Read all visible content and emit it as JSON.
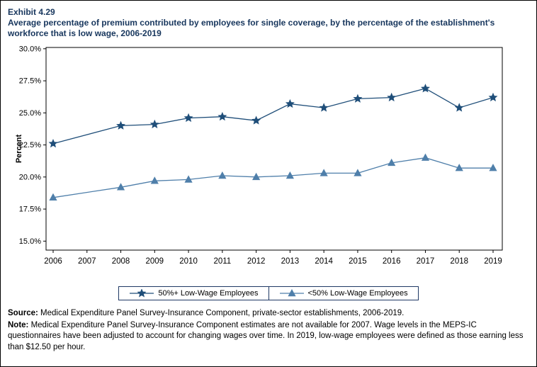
{
  "header": {
    "exhibit": "Exhibit 4.29",
    "title": "Average percentage of premium contributed by employees for single coverage, by the percentage of the establishment's workforce that is low wage, 2006-2019"
  },
  "chart_data": {
    "type": "line",
    "title": "Average percentage of premium contributed by employees for single coverage, by the percentage of the establishment's workforce that is low wage, 2006-2019",
    "xlabel": "",
    "ylabel": "Percent",
    "ylim": [
      14.3,
      30.1
    ],
    "grid": false,
    "legend_position": "bottom-center",
    "x": [
      "2006",
      "2007",
      "2008",
      "2009",
      "2010",
      "2011",
      "2012",
      "2013",
      "2014",
      "2015",
      "2016",
      "2017",
      "2018",
      "2019"
    ],
    "y_ticks": [
      {
        "value": 15.0,
        "label": "15.0%"
      },
      {
        "value": 17.5,
        "label": "17.5%"
      },
      {
        "value": 20.0,
        "label": "20.0%"
      },
      {
        "value": 22.5,
        "label": "22.5%"
      },
      {
        "value": 25.0,
        "label": "25.0%"
      },
      {
        "value": 27.5,
        "label": "27.5%"
      },
      {
        "value": 30.0,
        "label": "30.0%"
      }
    ],
    "series": [
      {
        "name": "50%+ Low-Wage Employees",
        "marker": "star",
        "color": "#1f4e79",
        "values": [
          22.6,
          null,
          24.0,
          24.1,
          24.6,
          24.7,
          24.4,
          25.7,
          25.4,
          26.1,
          26.2,
          26.9,
          25.4,
          26.2
        ]
      },
      {
        "name": "<50% Low-Wage Employees",
        "marker": "triangle",
        "color": "#4f7faa",
        "values": [
          18.4,
          null,
          19.2,
          19.7,
          19.8,
          20.1,
          20.0,
          20.1,
          20.3,
          20.3,
          21.1,
          21.5,
          20.7,
          20.7
        ]
      }
    ]
  },
  "footer": {
    "source_label": "Source:",
    "source_text": " Medical Expenditure Panel Survey-Insurance Component, private-sector establishments, 2006-2019.",
    "note_label": "Note:",
    "note_text": " Medical Expenditure Panel Survey-Insurance Component estimates are not available for 2007. Wage levels in the MEPS-IC questionnaires have been adjusted to account for changing wages over time. In 2019, low-wage employees were defined as those earning less than $12.50 per hour."
  }
}
